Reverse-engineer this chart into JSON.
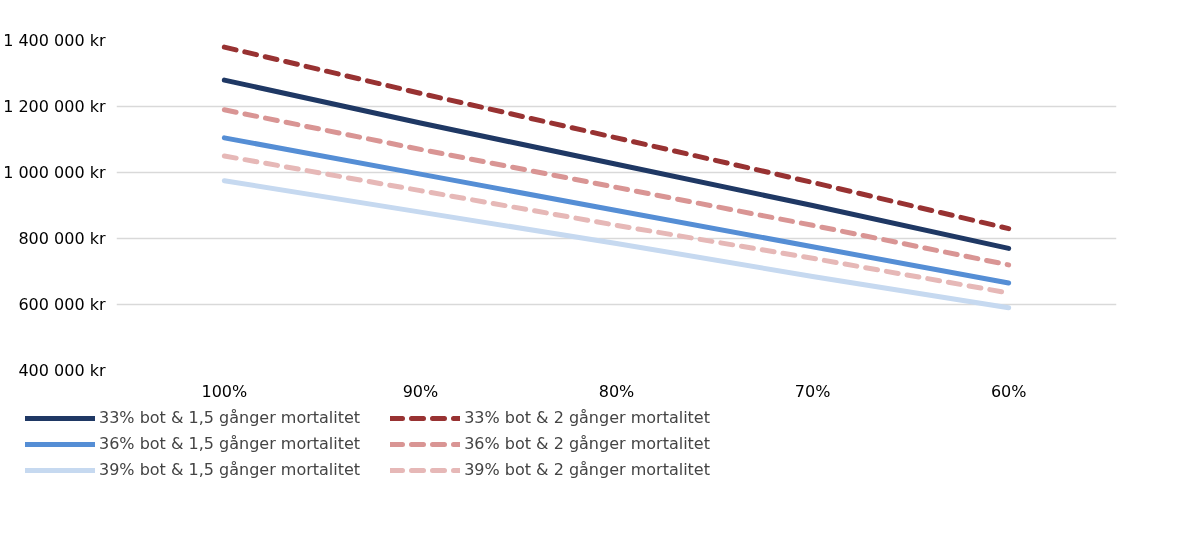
{
  "chart_data": {
    "type": "line",
    "categories": [
      "100%",
      "90%",
      "80%",
      "70%",
      "60%"
    ],
    "ylim": [
      400000,
      1400000
    ],
    "yticks": [
      {
        "value": 400000,
        "label": "400 000 kr"
      },
      {
        "value": 600000,
        "label": "600 000 kr"
      },
      {
        "value": 800000,
        "label": "800 000 kr"
      },
      {
        "value": 1000000,
        "label": "1 000 000 kr"
      },
      {
        "value": 1200000,
        "label": "1 200 000 kr"
      },
      {
        "value": 1400000,
        "label": "1 400 000 kr"
      }
    ],
    "grid": "y",
    "legend": "bottom",
    "marker": "none",
    "series": [
      {
        "name": "33% bot & 1,5 gånger mortalitet",
        "color": "#1f3864",
        "line_style": "solid",
        "values": [
          1280000,
          1150000,
          1025000,
          900000,
          770000
        ]
      },
      {
        "name": "33% bot & 2 gånger mortalitet",
        "color": "#983232",
        "line_style": "dashed",
        "values": [
          1380000,
          1240000,
          1105000,
          970000,
          830000
        ]
      },
      {
        "name": "36% bot & 1,5 gånger mortalitet",
        "color": "#558ed5",
        "line_style": "solid",
        "values": [
          1105000,
          995000,
          885000,
          775000,
          665000
        ]
      },
      {
        "name": "36% bot & 2 gånger mortalitet",
        "color": "#d99594",
        "line_style": "dashed",
        "values": [
          1190000,
          1070000,
          955000,
          840000,
          720000
        ]
      },
      {
        "name": "39% bot & 1,5 gånger mortalitet",
        "color": "#c6d9f0",
        "line_style": "solid",
        "values": [
          975000,
          880000,
          785000,
          685000,
          590000
        ]
      },
      {
        "name": "39% bot & 2 gånger mortalitet",
        "color": "#e6b8b7",
        "line_style": "dashed",
        "values": [
          1050000,
          945000,
          840000,
          740000,
          635000
        ]
      }
    ]
  }
}
